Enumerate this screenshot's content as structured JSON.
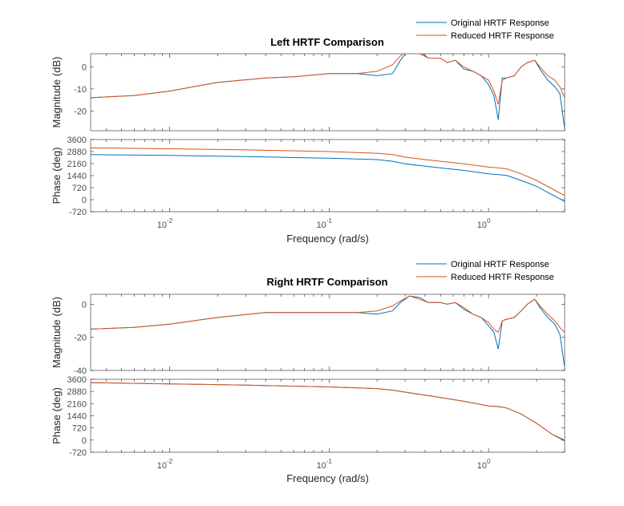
{
  "chart_data": [
    {
      "type": "line",
      "title": "Left HRTF Comparison",
      "xlabel": "Frequency  (rad/s)",
      "ylabel": "Magnitude (dB)",
      "xscale": "log",
      "xlim": [
        0.0032,
        3.0
      ],
      "ylim": [
        -29,
        6
      ],
      "yticks": [
        "0",
        "-10",
        "-20"
      ],
      "legend": "top-right",
      "series": [
        {
          "name": "Original HRTF Response",
          "color": "#0072bd",
          "x": [
            0.0032,
            0.006,
            0.01,
            0.02,
            0.04,
            0.06,
            0.1,
            0.15,
            0.2,
            0.25,
            0.28,
            0.32,
            0.37,
            0.42,
            0.5,
            0.55,
            0.62,
            0.7,
            0.8,
            0.9,
            1.0,
            1.08,
            1.15,
            1.22,
            1.3,
            1.45,
            1.6,
            1.75,
            1.95,
            2.1,
            2.35,
            2.6,
            2.8,
            3.0
          ],
          "y": [
            -14,
            -13,
            -11,
            -7,
            -5,
            -4.5,
            -3,
            -3,
            -4,
            -3,
            3,
            8.5,
            7,
            4,
            4,
            2,
            3,
            -1,
            -2,
            -4,
            -8,
            -13,
            -24,
            -5,
            -5,
            -4,
            0,
            2,
            3,
            -1,
            -6,
            -9,
            -12,
            -28
          ]
        },
        {
          "name": "Reduced HRTF Response",
          "color": "#d95319",
          "x": [
            0.0032,
            0.006,
            0.01,
            0.02,
            0.04,
            0.06,
            0.1,
            0.15,
            0.2,
            0.25,
            0.28,
            0.32,
            0.37,
            0.42,
            0.5,
            0.55,
            0.62,
            0.7,
            0.8,
            0.9,
            1.0,
            1.08,
            1.15,
            1.22,
            1.3,
            1.45,
            1.6,
            1.75,
            1.95,
            2.1,
            2.35,
            2.6,
            2.8,
            3.0
          ],
          "y": [
            -14,
            -13,
            -11,
            -7,
            -5,
            -4.5,
            -3,
            -3,
            -2,
            1,
            5,
            8.5,
            6,
            4,
            4,
            2,
            3,
            0,
            -2,
            -4,
            -6,
            -11,
            -17,
            -6,
            -5,
            -4,
            0,
            2,
            3,
            0,
            -4,
            -6,
            -9,
            -14
          ]
        }
      ]
    },
    {
      "type": "line",
      "xlabel": "Frequency  (rad/s)",
      "ylabel": "Phase (deg)",
      "xscale": "log",
      "xlim": [
        0.0032,
        3.0
      ],
      "ylim": [
        -720,
        3600
      ],
      "yticks": [
        "3600",
        "2880",
        "2160",
        "1440",
        "720",
        "0",
        "-720"
      ],
      "series": [
        {
          "name": "Original HRTF Response",
          "color": "#0072bd",
          "x": [
            0.0032,
            0.01,
            0.03,
            0.1,
            0.2,
            0.25,
            0.3,
            0.4,
            0.5,
            0.7,
            1.0,
            1.15,
            1.3,
            1.6,
            2.0,
            2.5,
            3.0
          ],
          "y": [
            2700,
            2650,
            2580,
            2480,
            2400,
            2300,
            2150,
            2000,
            1900,
            1750,
            1550,
            1500,
            1450,
            1150,
            800,
            300,
            -100
          ]
        },
        {
          "name": "Reduced HRTF Response",
          "color": "#d95319",
          "x": [
            0.0032,
            0.01,
            0.03,
            0.1,
            0.2,
            0.25,
            0.3,
            0.4,
            0.5,
            0.7,
            1.0,
            1.15,
            1.3,
            1.6,
            2.0,
            2.5,
            3.0
          ],
          "y": [
            3100,
            3050,
            2980,
            2880,
            2780,
            2700,
            2550,
            2400,
            2300,
            2150,
            1950,
            1900,
            1850,
            1550,
            1150,
            650,
            250
          ]
        }
      ]
    },
    {
      "type": "line",
      "title": "Right HRTF Comparison",
      "xlabel": "Frequency  (rad/s)",
      "ylabel": "Magnitude (dB)",
      "xscale": "log",
      "xlim": [
        0.0032,
        3.0
      ],
      "ylim": [
        -40,
        6
      ],
      "yticks": [
        "0",
        "-20",
        "-40"
      ],
      "legend": "top-right",
      "series": [
        {
          "name": "Original HRTF Response",
          "color": "#0072bd",
          "x": [
            0.0032,
            0.006,
            0.01,
            0.02,
            0.04,
            0.06,
            0.1,
            0.15,
            0.2,
            0.25,
            0.28,
            0.32,
            0.37,
            0.42,
            0.5,
            0.55,
            0.62,
            0.7,
            0.8,
            0.9,
            1.0,
            1.08,
            1.15,
            1.22,
            1.3,
            1.45,
            1.6,
            1.75,
            1.95,
            2.1,
            2.35,
            2.6,
            2.8,
            3.0
          ],
          "y": [
            -15,
            -14,
            -12,
            -8,
            -5,
            -5,
            -5,
            -5,
            -6,
            -4,
            1,
            5,
            4,
            1,
            1,
            0,
            1,
            -3,
            -6,
            -8,
            -13,
            -17,
            -27,
            -10,
            -9,
            -8,
            -4,
            0,
            3,
            -2,
            -8,
            -12,
            -18,
            -38
          ]
        },
        {
          "name": "Reduced HRTF Response",
          "color": "#d95319",
          "x": [
            0.0032,
            0.006,
            0.01,
            0.02,
            0.04,
            0.06,
            0.1,
            0.15,
            0.2,
            0.25,
            0.28,
            0.32,
            0.37,
            0.42,
            0.5,
            0.55,
            0.62,
            0.7,
            0.8,
            0.9,
            1.0,
            1.08,
            1.15,
            1.22,
            1.3,
            1.45,
            1.6,
            1.75,
            1.95,
            2.1,
            2.35,
            2.6,
            2.8,
            3.0
          ],
          "y": [
            -15,
            -14,
            -12,
            -8,
            -5,
            -5,
            -5,
            -5,
            -4,
            -1,
            2,
            5,
            3,
            1,
            1,
            0,
            1,
            -2,
            -6,
            -8,
            -11,
            -15,
            -17,
            -10,
            -9,
            -8,
            -4,
            0,
            3,
            -1,
            -6,
            -10,
            -14,
            -17
          ]
        }
      ]
    },
    {
      "type": "line",
      "xlabel": "Frequency  (rad/s)",
      "ylabel": "Phase (deg)",
      "xscale": "log",
      "xlim": [
        0.0032,
        3.0
      ],
      "ylim": [
        -720,
        3600
      ],
      "yticks": [
        "3600",
        "2880",
        "2160",
        "1440",
        "720",
        "0",
        "-720"
      ],
      "series": [
        {
          "name": "Original HRTF Response",
          "color": "#0072bd",
          "x": [
            0.0032,
            0.01,
            0.03,
            0.1,
            0.2,
            0.25,
            0.3,
            0.4,
            0.5,
            0.7,
            1.0,
            1.15,
            1.3,
            1.6,
            2.0,
            2.5,
            3.0
          ],
          "y": [
            3400,
            3330,
            3260,
            3150,
            3050,
            2960,
            2840,
            2660,
            2520,
            2300,
            2020,
            1990,
            1900,
            1550,
            1000,
            350,
            -50
          ]
        },
        {
          "name": "Reduced HRTF Response",
          "color": "#d95319",
          "x": [
            0.0032,
            0.01,
            0.03,
            0.1,
            0.2,
            0.25,
            0.3,
            0.4,
            0.5,
            0.7,
            1.0,
            1.15,
            1.3,
            1.6,
            2.0,
            2.5,
            3.0
          ],
          "y": [
            3400,
            3330,
            3260,
            3150,
            3050,
            2960,
            2840,
            2660,
            2520,
            2300,
            2020,
            1980,
            1900,
            1550,
            1000,
            350,
            0
          ]
        }
      ]
    }
  ]
}
